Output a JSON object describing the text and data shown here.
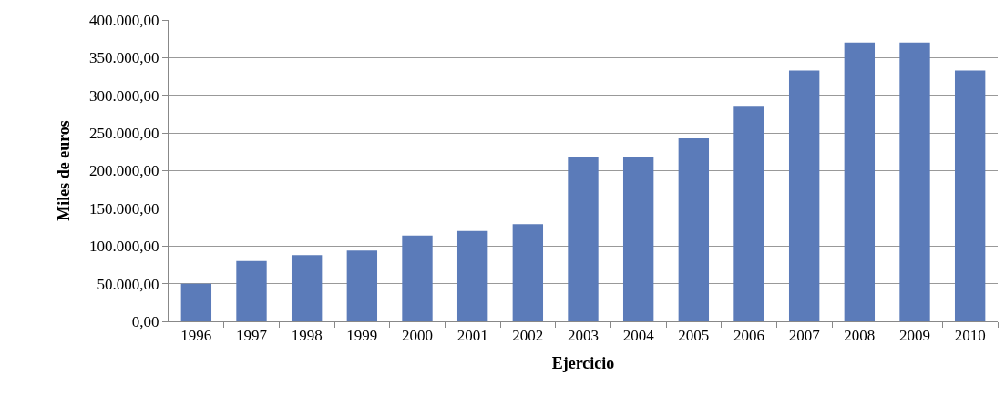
{
  "chart_data": {
    "type": "bar",
    "xlabel": "Ejercicio",
    "ylabel": "Miles de euros",
    "categories": [
      "1996",
      "1997",
      "1998",
      "1999",
      "2000",
      "2001",
      "2002",
      "2003",
      "2004",
      "2005",
      "2006",
      "2007",
      "2008",
      "2009",
      "2010"
    ],
    "values": [
      50000,
      80000,
      88000,
      94000,
      114000,
      120000,
      129000,
      218000,
      218000,
      243000,
      286000,
      333000,
      370000,
      370000,
      333000
    ],
    "color": "#5b7bb9",
    "ylim": [
      0,
      400000
    ],
    "yticks": [
      {
        "value": 0,
        "label": "0,00"
      },
      {
        "value": 50000,
        "label": "50.000,00"
      },
      {
        "value": 100000,
        "label": "100.000,00"
      },
      {
        "value": 150000,
        "label": "150.000,00"
      },
      {
        "value": 200000,
        "label": "200.000,00"
      },
      {
        "value": 250000,
        "label": "250.000,00"
      },
      {
        "value": 300000,
        "label": "300.000,00"
      },
      {
        "value": 350000,
        "label": "350.000,00"
      },
      {
        "value": 400000,
        "label": "400.000,00"
      }
    ],
    "grid": "y"
  }
}
